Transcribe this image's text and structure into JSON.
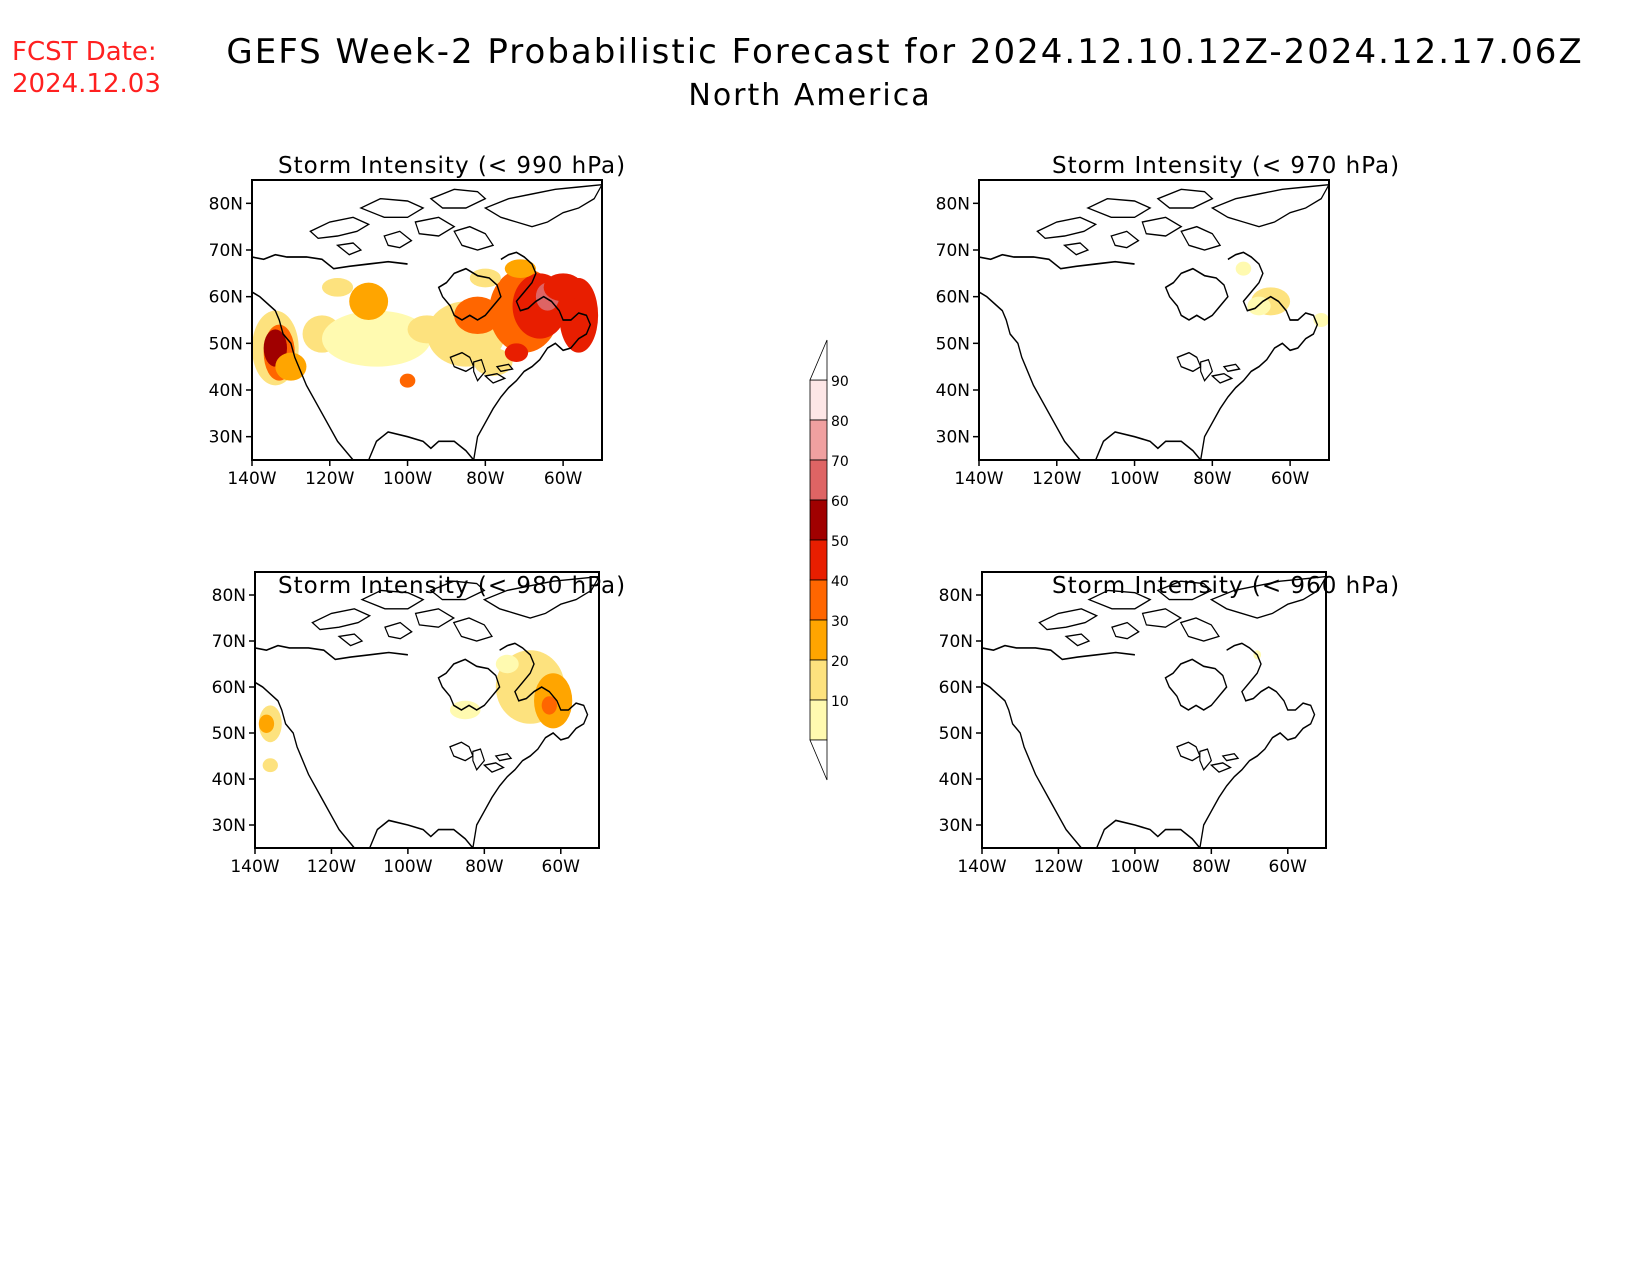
{
  "header": {
    "fcst_label": "FCST Date:",
    "fcst_date": "2024.12.03",
    "title": "GEFS Week-2 Probabilistic Forecast for 2024.12.10.12Z-2024.12.17.06Z",
    "subtitle": "North America"
  },
  "panels": [
    {
      "id": "p990",
      "title": "Storm Intensity (< 990 hPa)",
      "threshold_hpa": 990
    },
    {
      "id": "p970",
      "title": "Storm Intensity (< 970 hPa)",
      "threshold_hpa": 970
    },
    {
      "id": "p980",
      "title": "Storm Intensity (< 980 hPa)",
      "threshold_hpa": 980
    },
    {
      "id": "p960",
      "title": "Storm Intensity (< 960 hPa)",
      "threshold_hpa": 960
    }
  ],
  "axes": {
    "lat_labels": [
      "80N",
      "70N",
      "60N",
      "50N",
      "40N",
      "30N"
    ],
    "lon_labels": [
      "140W",
      "120W",
      "100W",
      "80W",
      "60W"
    ],
    "lat_values": [
      80,
      70,
      60,
      50,
      40,
      30
    ],
    "lon_values": [
      -140,
      -120,
      -100,
      -80,
      -60
    ],
    "lat_range": [
      25,
      85
    ],
    "lon_range": [
      -140,
      -50
    ]
  },
  "colorbar": {
    "labels": [
      "10",
      "20",
      "30",
      "40",
      "50",
      "60",
      "70",
      "80",
      "90"
    ],
    "colors": [
      "#fffab0",
      "#fde27e",
      "#ffa500",
      "#ff6600",
      "#e81e00",
      "#a00000",
      "#de6464",
      "#f0a0a0",
      "#fde6e6"
    ]
  },
  "colors": {
    "fcst_text": "#ff2020"
  }
}
